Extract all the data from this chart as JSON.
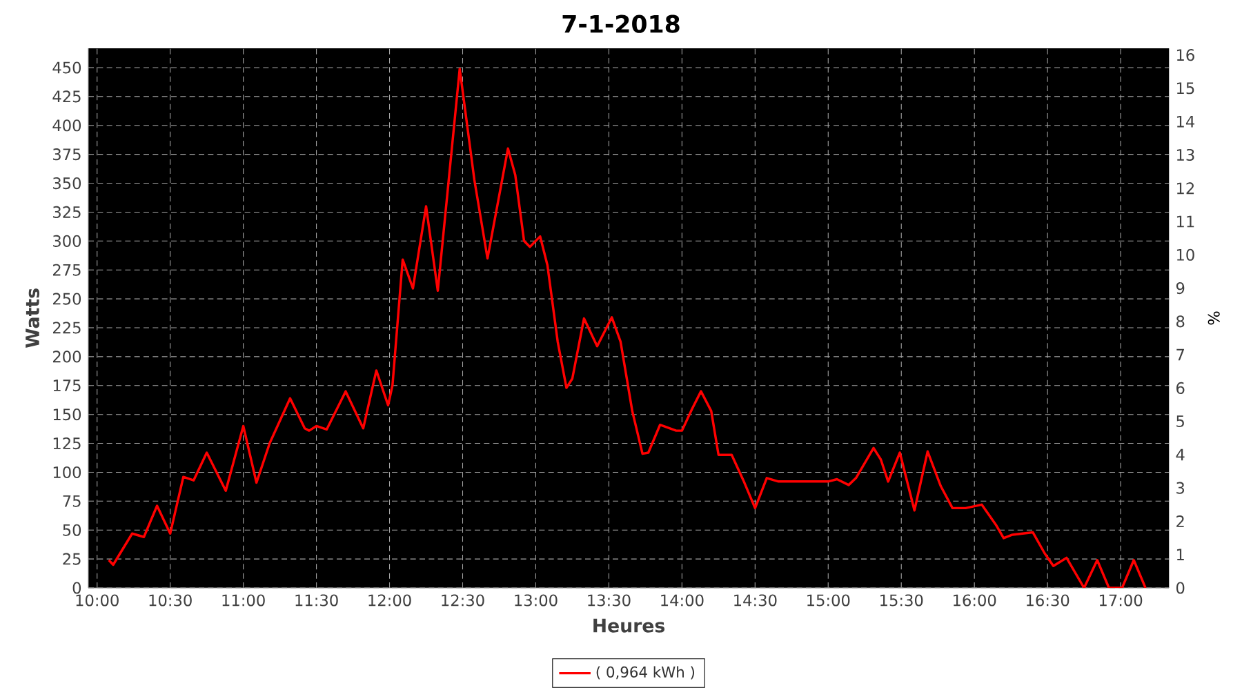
{
  "chart_data": {
    "type": "line",
    "title": "7-1-2018",
    "xlabel": "Heures",
    "ylabel": "Watts",
    "y2label": "%",
    "x": [
      10.08,
      10.11,
      10.24,
      10.32,
      10.41,
      10.5,
      10.59,
      10.66,
      10.75,
      10.88,
      11.0,
      11.09,
      11.18,
      11.32,
      11.42,
      11.45,
      11.5,
      11.57,
      11.7,
      11.82,
      11.91,
      11.99,
      12.02,
      12.09,
      12.16,
      12.25,
      12.33,
      12.48,
      12.58,
      12.67,
      12.81,
      12.86,
      12.92,
      12.96,
      13.03,
      13.08,
      13.15,
      13.21,
      13.25,
      13.33,
      13.42,
      13.52,
      13.58,
      13.66,
      13.73,
      13.77,
      13.85,
      13.96,
      14.0,
      14.07,
      14.13,
      14.2,
      14.25,
      14.34,
      14.42,
      14.5,
      14.58,
      14.66,
      15.0,
      15.06,
      15.14,
      15.19,
      15.31,
      15.36,
      15.41,
      15.49,
      15.59,
      15.68,
      15.77,
      15.85,
      15.94,
      16.05,
      16.15,
      16.2,
      16.26,
      16.4,
      16.48,
      16.54,
      16.63,
      16.75,
      16.84,
      16.92,
      17.01,
      17.09,
      17.17
    ],
    "series": [
      {
        "name": "( 0,964 kWh )",
        "color": "#ff0000",
        "values": [
          24,
          20,
          47,
          44,
          71,
          47,
          96,
          93,
          117,
          84,
          140,
          91,
          125,
          164,
          138,
          136,
          140,
          137,
          170,
          138,
          188,
          158,
          175,
          284,
          259,
          330,
          257,
          449,
          353,
          285,
          380,
          357,
          300,
          295,
          304,
          279,
          213,
          173,
          181,
          233,
          209,
          234,
          213,
          153,
          116,
          117,
          141,
          136,
          136,
          155,
          170,
          153,
          115,
          115,
          93,
          69,
          95,
          92,
          92,
          94,
          89,
          95,
          121,
          111,
          92,
          117,
          67,
          118,
          88,
          69,
          69,
          72,
          54,
          43,
          46,
          48,
          30,
          19,
          26,
          0,
          24,
          0,
          0,
          24,
          0
        ]
      }
    ],
    "xlim": [
      9.94,
      17.33
    ],
    "ylim": [
      0,
      466.7
    ],
    "y2lim": [
      0,
      16.2
    ],
    "xticks": [
      {
        "value": 10,
        "label": "10:00"
      },
      {
        "value": 10.5,
        "label": "10:30"
      },
      {
        "value": 11,
        "label": "11:00"
      },
      {
        "value": 11.5,
        "label": "11:30"
      },
      {
        "value": 12,
        "label": "12:00"
      },
      {
        "value": 12.5,
        "label": "12:30"
      },
      {
        "value": 13,
        "label": "13:00"
      },
      {
        "value": 13.5,
        "label": "13:30"
      },
      {
        "value": 14,
        "label": "14:00"
      },
      {
        "value": 14.5,
        "label": "14:30"
      },
      {
        "value": 15,
        "label": "15:00"
      },
      {
        "value": 15.5,
        "label": "15:30"
      },
      {
        "value": 16,
        "label": "16:00"
      },
      {
        "value": 16.5,
        "label": "16:30"
      },
      {
        "value": 17,
        "label": "17:00"
      }
    ],
    "yticks": [
      0,
      25,
      50,
      75,
      100,
      125,
      150,
      175,
      200,
      225,
      250,
      275,
      300,
      325,
      350,
      375,
      400,
      425,
      450
    ],
    "y2ticks": [
      0,
      1,
      2,
      3,
      4,
      5,
      6,
      7,
      8,
      9,
      10,
      11,
      12,
      13,
      14,
      15,
      16
    ],
    "grid": true,
    "legend": "bottom",
    "marker": "none",
    "line_style": "solid"
  }
}
